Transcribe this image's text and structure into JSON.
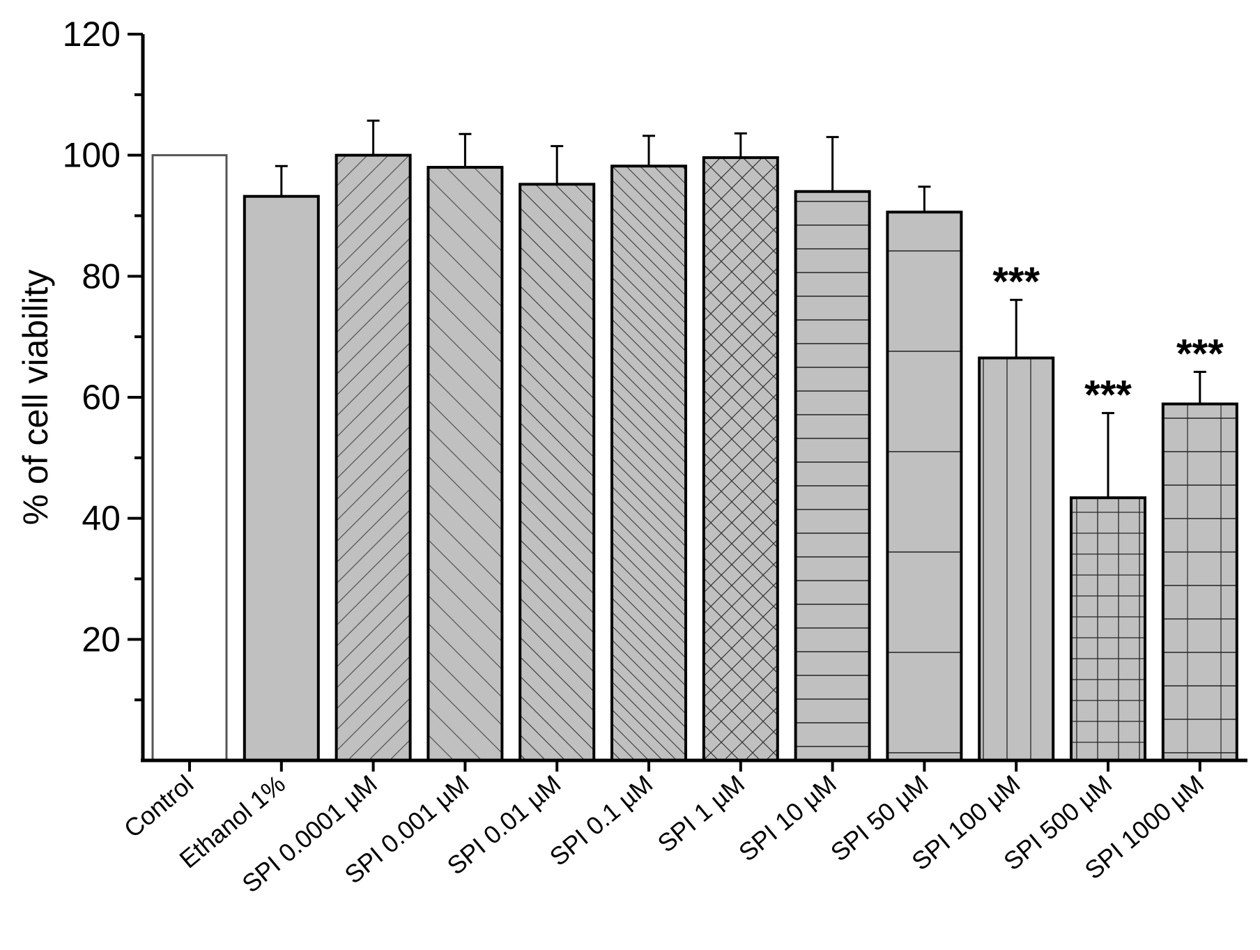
{
  "chart_data": {
    "type": "bar",
    "title": "",
    "xlabel": "",
    "ylabel": "% of cell viability",
    "ylim": [
      0,
      120
    ],
    "yticks": [
      20,
      40,
      60,
      80,
      100,
      120
    ],
    "grid": false,
    "legend": "none",
    "categories": [
      "Control",
      "Ethanol 1%",
      "SPI 0.0001 µM",
      "SPI 0.001 µM",
      "SPI 0.01 µM",
      "SPI 0.1 µM",
      "SPI 1 µM",
      "SPI 10 µM",
      "SPI 50 µM",
      "SPI 100 µM",
      "SPI 500 µM",
      "SPI 1000 µM"
    ],
    "values": [
      100,
      93.2,
      100,
      98,
      95.2,
      98.2,
      99.6,
      94,
      90.6,
      66.5,
      43.4,
      58.9
    ],
    "errors": [
      0,
      5,
      5.7,
      5.5,
      6.3,
      5,
      4,
      9,
      4.2,
      9.6,
      14,
      5.3
    ],
    "significance": [
      "",
      "",
      "",
      "",
      "",
      "",
      "",
      "",
      "",
      "***",
      "***",
      "***"
    ],
    "fill_colors": [
      "#ffffff",
      "#c0c0c0",
      "#c0c0c0",
      "#c0c0c0",
      "#c0c0c0",
      "#c0c0c0",
      "#c0c0c0",
      "#c0c0c0",
      "#c0c0c0",
      "#c0c0c0",
      "#c0c0c0",
      "#c0c0c0"
    ],
    "patterns": [
      "none",
      "none",
      "diag-right",
      "diag-left-sparse",
      "diag-left",
      "diag-left-dense",
      "crosshatch",
      "horizontal-dense",
      "horizontal-sparse",
      "vertical",
      "grid-dense",
      "grid-sparse"
    ]
  }
}
